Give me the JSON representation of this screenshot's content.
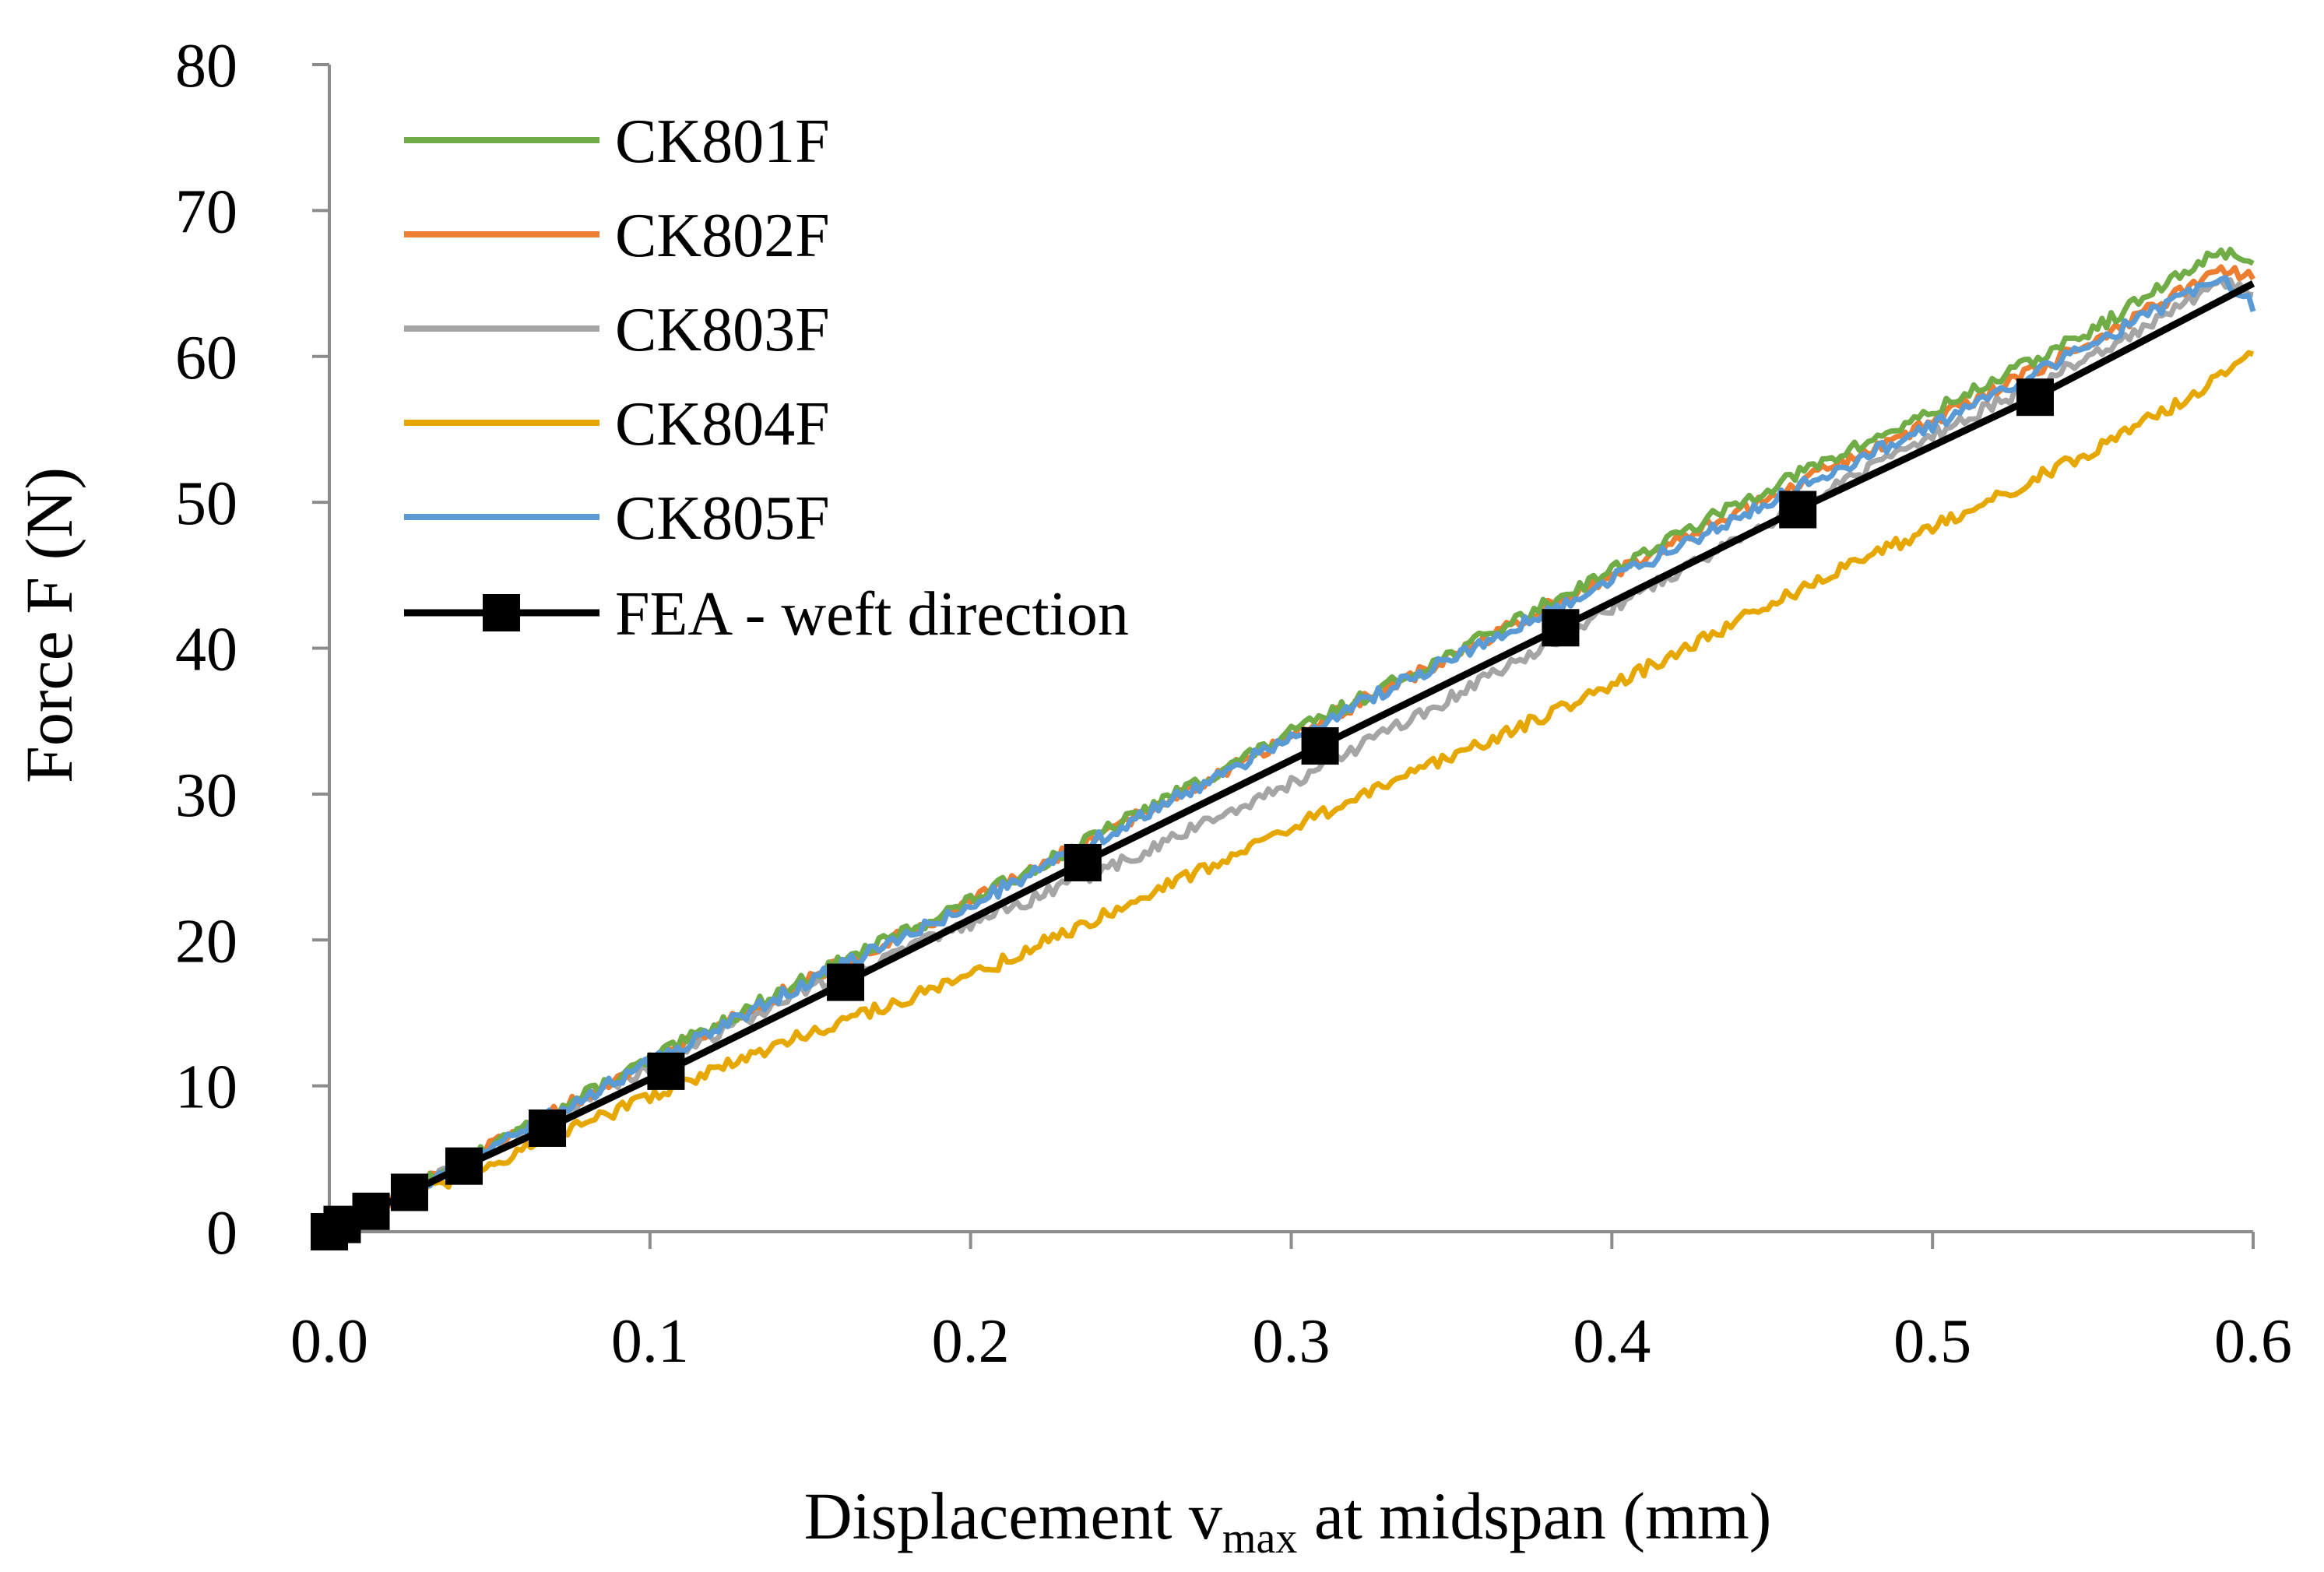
{
  "chart_data": {
    "type": "line",
    "title": "",
    "xlabel": {
      "prefix": "Displacement v",
      "subscript": "max",
      "suffix": " at midspan (mm)"
    },
    "ylabel": "Force F (N)",
    "xlim": [
      0,
      0.6
    ],
    "ylim": [
      0,
      80
    ],
    "xticks": [
      0,
      0.1,
      0.2,
      0.3,
      0.4,
      0.5,
      0.6
    ],
    "xtick_labels": [
      "0.0",
      "0.1",
      "0.2",
      "0.3",
      "0.4",
      "0.5",
      "0.6"
    ],
    "yticks": [
      0,
      10,
      20,
      30,
      40,
      50,
      60,
      70,
      80
    ],
    "ytick_labels": [
      "0",
      "10",
      "20",
      "30",
      "40",
      "50",
      "60",
      "70",
      "80"
    ],
    "grid": false,
    "legend_position": "top-left",
    "series": [
      {
        "name": "CK801F",
        "color": "#70ad47",
        "marker": "none",
        "x": [
          0,
          0.05,
          0.1,
          0.15,
          0.2,
          0.25,
          0.3,
          0.35,
          0.4,
          0.45,
          0.5,
          0.55,
          0.59,
          0.6
        ],
        "y": [
          0,
          5.8,
          11.8,
          17.5,
          22.7,
          28.4,
          34.2,
          39.6,
          45.4,
          51.1,
          56.2,
          61.8,
          67.3,
          66.5
        ]
      },
      {
        "name": "CK802F",
        "color": "#ed7d31",
        "marker": "none",
        "x": [
          0,
          0.05,
          0.1,
          0.15,
          0.2,
          0.25,
          0.3,
          0.35,
          0.4,
          0.45,
          0.5,
          0.55,
          0.59,
          0.6
        ],
        "y": [
          0,
          5.8,
          11.7,
          17.4,
          22.6,
          28.3,
          34.0,
          39.4,
          45.1,
          50.5,
          55.6,
          61.0,
          66.0,
          65.5
        ]
      },
      {
        "name": "CK803F",
        "color": "#a5a5a5",
        "marker": "none",
        "x": [
          0,
          0.05,
          0.1,
          0.15,
          0.2,
          0.25,
          0.3,
          0.35,
          0.4,
          0.45,
          0.5,
          0.55,
          0.59,
          0.6
        ],
        "y": [
          0,
          5.6,
          11.3,
          16.8,
          21.1,
          25.6,
          30.8,
          36.6,
          42.8,
          48.8,
          54.6,
          60.0,
          65.0,
          64.5
        ]
      },
      {
        "name": "CK804F",
        "color": "#e6a800",
        "marker": "none",
        "x": [
          0,
          0.05,
          0.1,
          0.15,
          0.2,
          0.25,
          0.3,
          0.35,
          0.4,
          0.45,
          0.5,
          0.55,
          0.59,
          0.6
        ],
        "y": [
          0,
          4.6,
          9.3,
          13.7,
          17.5,
          22.6,
          27.7,
          32.6,
          37.4,
          43.1,
          48.3,
          53.5,
          58.5,
          60.5
        ]
      },
      {
        "name": "CK805F",
        "color": "#5b9bd5",
        "marker": "none",
        "x": [
          0,
          0.05,
          0.1,
          0.15,
          0.2,
          0.25,
          0.3,
          0.35,
          0.4,
          0.45,
          0.5,
          0.55,
          0.59,
          0.6
        ],
        "y": [
          0,
          5.7,
          11.6,
          17.2,
          22.4,
          28.1,
          33.9,
          39.3,
          44.7,
          50.2,
          55.3,
          60.8,
          65.6,
          63.5
        ]
      },
      {
        "name": "FEA - weft direction",
        "color": "#000000",
        "marker": "square",
        "x": [
          0,
          0.004,
          0.013,
          0.025,
          0.042,
          0.068,
          0.105,
          0.161,
          0.235,
          0.309,
          0.384,
          0.458,
          0.532,
          0.6
        ],
        "y": [
          0,
          0.5,
          1.4,
          2.7,
          4.5,
          7.1,
          11.0,
          17.1,
          25.3,
          33.3,
          41.4,
          49.5,
          57.2,
          65.0
        ],
        "marker_indices": [
          0,
          1,
          2,
          3,
          4,
          5,
          6,
          7,
          8,
          9,
          10,
          11,
          12
        ]
      }
    ]
  }
}
